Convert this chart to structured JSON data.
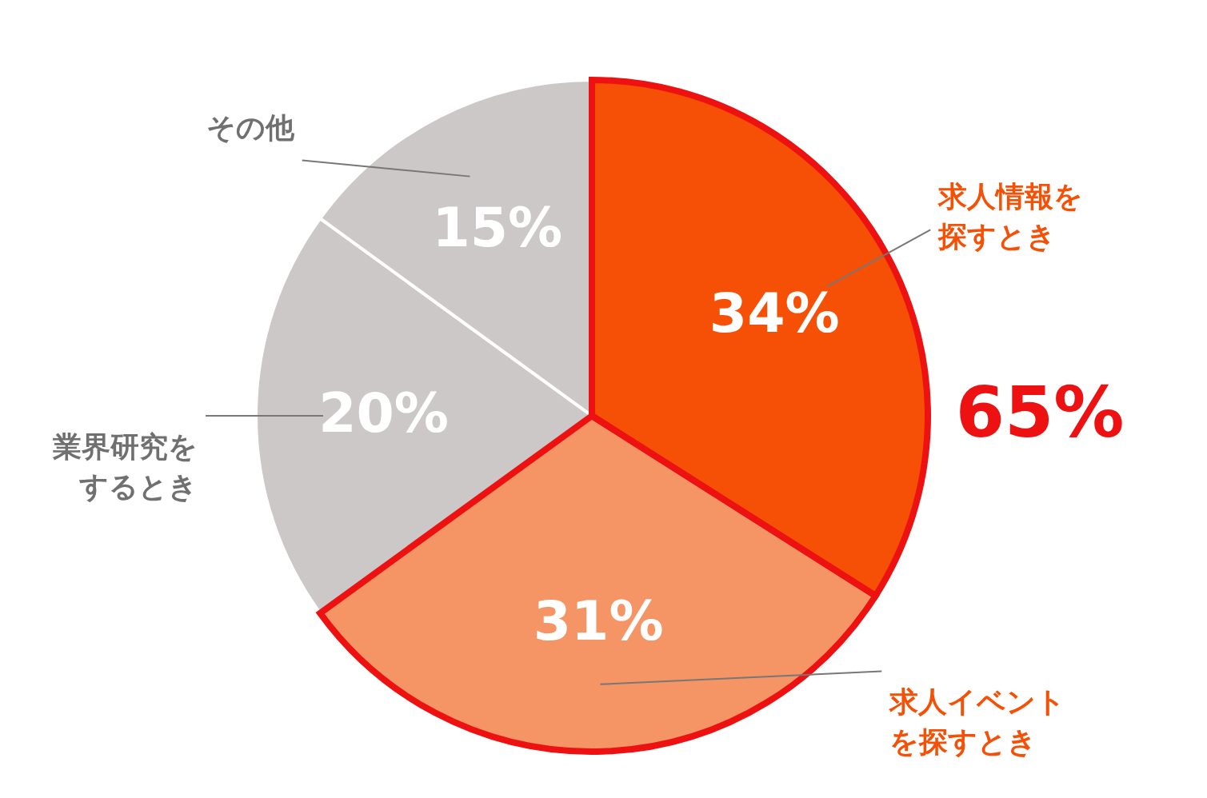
{
  "chart_data": {
    "type": "pie",
    "categories": [
      "求人情報を探すとき",
      "求人イベントを探すとき",
      "業界研究をするとき",
      "その他"
    ],
    "values": [
      34,
      31,
      20,
      15
    ],
    "value_labels": [
      "34%",
      "31%",
      "20%",
      "15%"
    ],
    "colors": [
      "#f55005",
      "#f59566",
      "#cbc8c7",
      "#cbc8c7"
    ],
    "annotations": [
      "65%"
    ]
  }
}
